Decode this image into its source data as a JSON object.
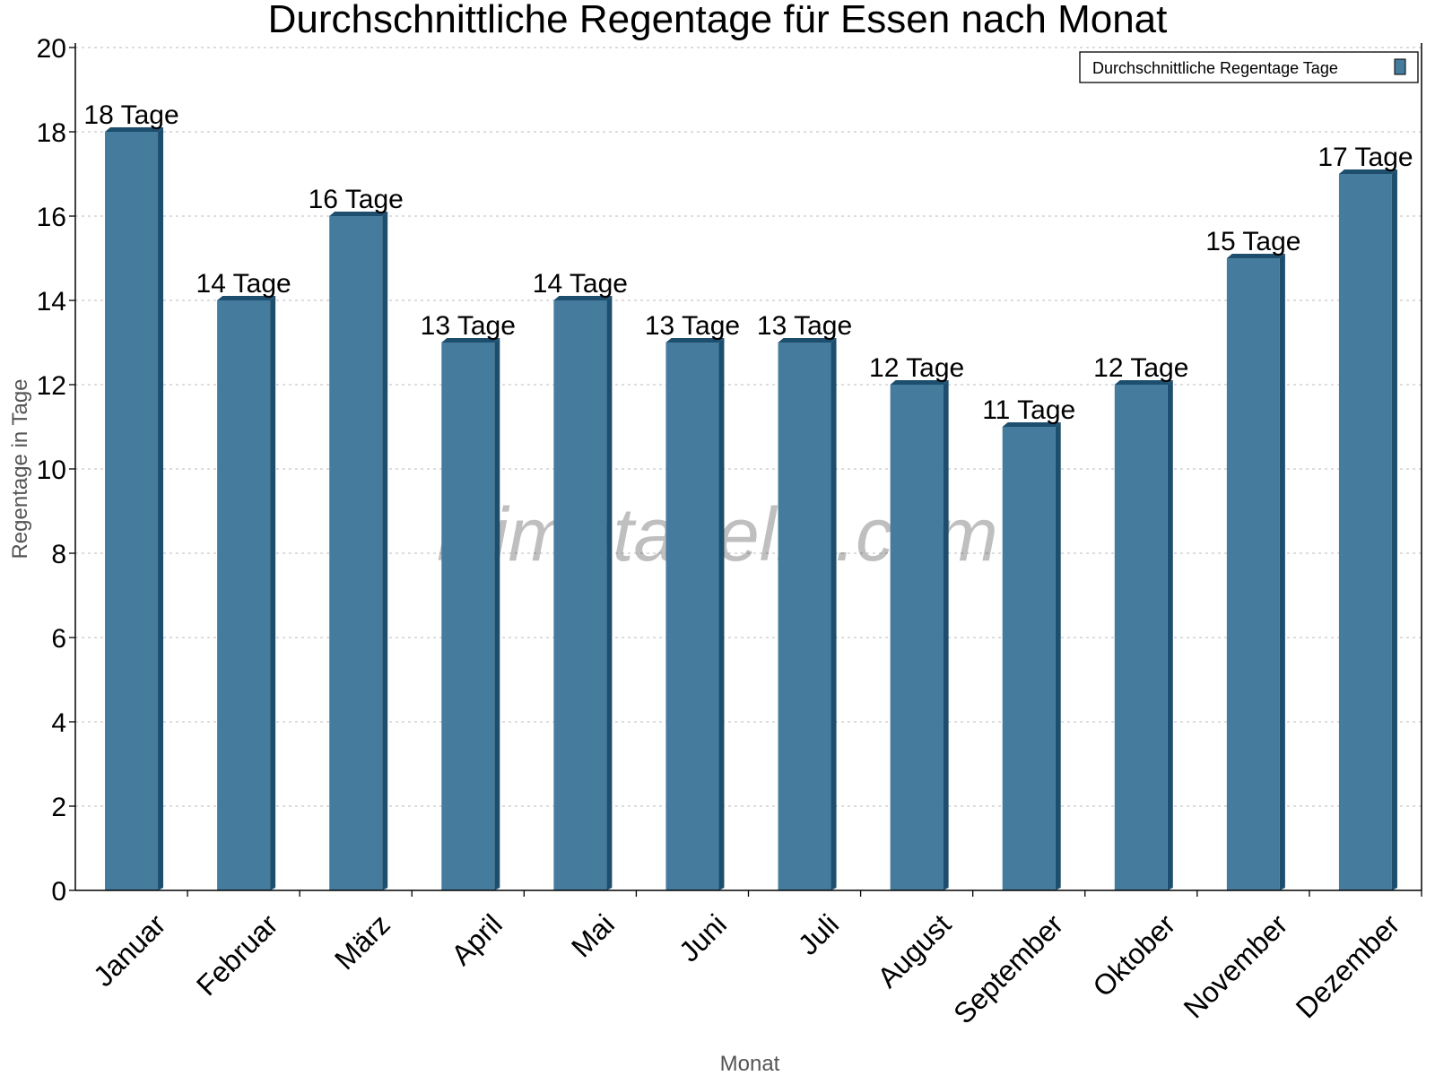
{
  "chart_data": {
    "type": "bar",
    "title": "Durchschnittliche Regentage für Essen nach Monat",
    "xlabel": "Monat",
    "ylabel": "Regentage in Tage",
    "categories": [
      "Januar",
      "Februar",
      "März",
      "April",
      "Mai",
      "Juni",
      "Juli",
      "August",
      "September",
      "Oktober",
      "November",
      "Dezember"
    ],
    "series": [
      {
        "name": "Durchschnittliche Regentage Tage",
        "values": [
          18,
          14,
          16,
          13,
          14,
          13,
          13,
          12,
          11,
          12,
          15,
          17
        ],
        "color": "#457b9d",
        "side_color": "#1d4e6e"
      }
    ],
    "value_label_suffix": " Tage",
    "ylim": [
      0,
      20
    ],
    "yticks": [
      0,
      2,
      4,
      6,
      8,
      10,
      12,
      14,
      16,
      18,
      20
    ],
    "grid": true,
    "legend_position": "top-right",
    "watermark": "klimatabelle.com"
  }
}
